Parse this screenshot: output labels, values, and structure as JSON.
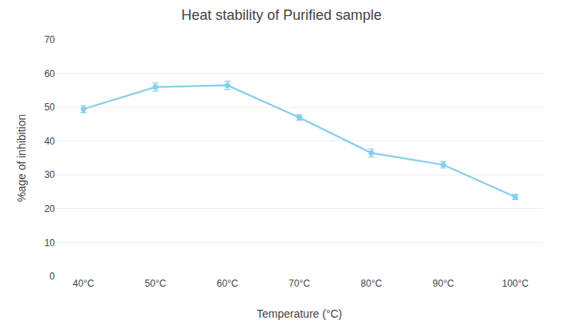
{
  "chart_data": {
    "type": "line",
    "title": "Heat stability of Purified sample",
    "xlabel": "Temperature (°C)",
    "ylabel": "%age of inhibition",
    "categories": [
      "40°C",
      "50°C",
      "60°C",
      "70°C",
      "80°C",
      "90°C",
      "100°C"
    ],
    "values": [
      49.5,
      56.0,
      56.5,
      47.0,
      36.5,
      33.0,
      23.5
    ],
    "errors": [
      1.0,
      1.2,
      1.2,
      0.8,
      1.2,
      1.0,
      0.8
    ],
    "color": "#87CEEB",
    "marker": "circle",
    "ylim": [
      0,
      70
    ],
    "yticks": [
      0,
      10,
      20,
      30,
      40,
      50,
      60,
      70
    ],
    "grid": "y"
  }
}
